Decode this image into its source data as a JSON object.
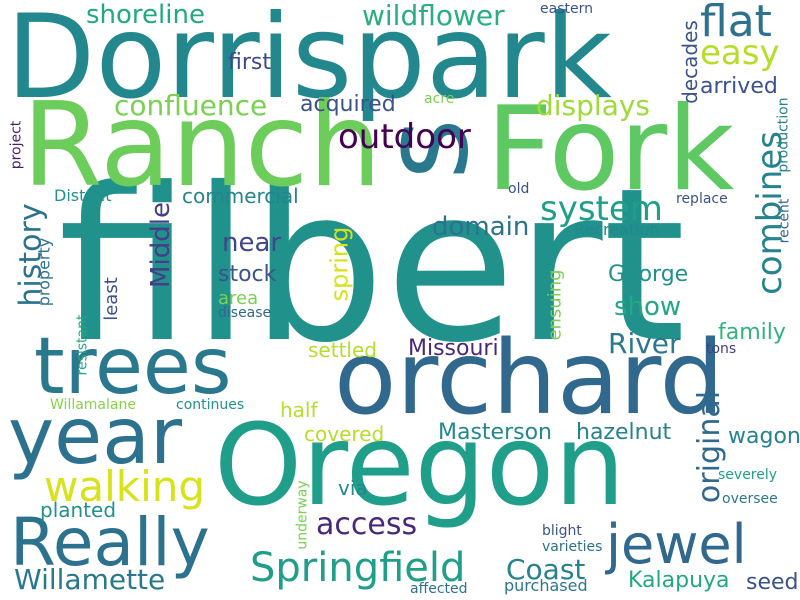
{
  "cloud": {
    "background": "#ffffff",
    "words": [
      {
        "text": "filbert",
        "color": "#21918c"
      },
      {
        "text": "Dorrispark",
        "color": "#23888e"
      },
      {
        "text": "Ranch",
        "color": "#6ccd5a"
      },
      {
        "text": "Fork",
        "color": "#5ec962"
      },
      {
        "text": "s",
        "color": "#2a788e"
      },
      {
        "text": "orchard",
        "color": "#31688e"
      },
      {
        "text": "Oregon",
        "color": "#1f9e89"
      },
      {
        "text": "trees",
        "color": "#2a788e"
      },
      {
        "text": "year",
        "color": "#2c728e"
      },
      {
        "text": "Really",
        "color": "#2c728e"
      },
      {
        "text": "jewel",
        "color": "#31688e"
      },
      {
        "text": "Springfield",
        "color": "#1f9e89"
      },
      {
        "text": "Willamette",
        "color": "#2a788e"
      },
      {
        "text": "Coast",
        "color": "#26828e"
      },
      {
        "text": "walking",
        "color": "#d8e219"
      },
      {
        "text": "access",
        "color": "#482878"
      },
      {
        "text": "outdoor",
        "color": "#440154"
      },
      {
        "text": "system",
        "color": "#1f9e89"
      },
      {
        "text": "combines",
        "color": "#26828e"
      },
      {
        "text": "flat",
        "color": "#2c728e"
      },
      {
        "text": "easy",
        "color": "#b5de2b"
      },
      {
        "text": "wildflower",
        "color": "#29af7f"
      },
      {
        "text": "shoreline",
        "color": "#22a884"
      },
      {
        "text": "confluence",
        "color": "#7ad151"
      },
      {
        "text": "displays",
        "color": "#a0da39"
      },
      {
        "text": "history",
        "color": "#2c728e"
      },
      {
        "text": "Middle",
        "color": "#433e85"
      },
      {
        "text": "near",
        "color": "#404688"
      },
      {
        "text": "stock",
        "color": "#3b528b"
      },
      {
        "text": "domain",
        "color": "#2c728e"
      },
      {
        "text": "show",
        "color": "#22a884"
      },
      {
        "text": "George",
        "color": "#21918c"
      },
      {
        "text": "River",
        "color": "#2a788e"
      },
      {
        "text": "Missouri",
        "color": "#482878"
      },
      {
        "text": "settled",
        "color": "#b5de2b"
      },
      {
        "text": "Masterson",
        "color": "#23888e"
      },
      {
        "text": "hazelnut",
        "color": "#26828e"
      },
      {
        "text": "original",
        "color": "#31688e"
      },
      {
        "text": "wagon",
        "color": "#26828e"
      },
      {
        "text": "family",
        "color": "#2fb47c"
      },
      {
        "text": "Kalapuya",
        "color": "#22a884"
      },
      {
        "text": "seed",
        "color": "#3b528b"
      },
      {
        "text": "decades",
        "color": "#3b528b"
      },
      {
        "text": "arrived",
        "color": "#3b528b"
      },
      {
        "text": "acquired",
        "color": "#3b528b"
      },
      {
        "text": "first",
        "color": "#3e4989"
      },
      {
        "text": "commercial",
        "color": "#25848e"
      },
      {
        "text": "spring",
        "color": "#d8e219"
      },
      {
        "text": "half",
        "color": "#b5de2b"
      },
      {
        "text": "covered",
        "color": "#b5de2b"
      },
      {
        "text": "planted",
        "color": "#21918c"
      },
      {
        "text": "via",
        "color": "#23888e"
      },
      {
        "text": "ensuing",
        "color": "#7ad151"
      },
      {
        "text": "property",
        "color": "#2c728e"
      },
      {
        "text": "least",
        "color": "#3b528b"
      },
      {
        "text": "area",
        "color": "#7ad151"
      },
      {
        "text": "disease",
        "color": "#31688e"
      },
      {
        "text": "Recreation",
        "color": "#23888e"
      },
      {
        "text": "District",
        "color": "#21918c"
      },
      {
        "text": "production",
        "color": "#26828e"
      },
      {
        "text": "recent",
        "color": "#31688e"
      },
      {
        "text": "replace",
        "color": "#3b528b"
      },
      {
        "text": "old",
        "color": "#3b528b"
      },
      {
        "text": "acre",
        "color": "#7ad151"
      },
      {
        "text": "eastern",
        "color": "#3b528b"
      },
      {
        "text": "project",
        "color": "#481f70"
      },
      {
        "text": "resistant",
        "color": "#22a884"
      },
      {
        "text": "Willamalane",
        "color": "#86d549"
      },
      {
        "text": "continues",
        "color": "#21918c"
      },
      {
        "text": "tons",
        "color": "#433e85"
      },
      {
        "text": "severely",
        "color": "#1fa187"
      },
      {
        "text": "oversee",
        "color": "#2a788e"
      },
      {
        "text": "blight",
        "color": "#3b528b"
      },
      {
        "text": "varieties",
        "color": "#2c728e"
      },
      {
        "text": "underway",
        "color": "#7ad151"
      },
      {
        "text": "affected",
        "color": "#2c728e"
      },
      {
        "text": "purchased",
        "color": "#2a788e"
      }
    ]
  }
}
